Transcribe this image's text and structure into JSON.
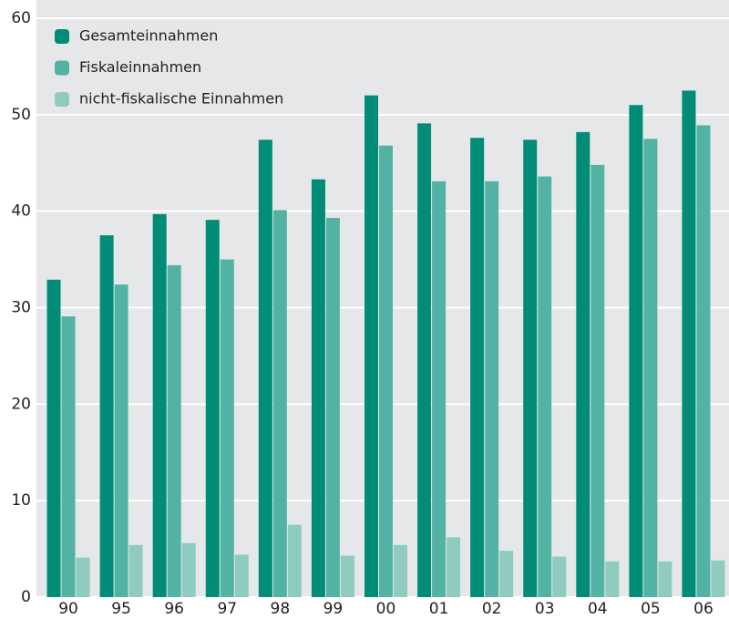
{
  "chart_data": {
    "type": "bar",
    "categories": [
      "90",
      "95",
      "96",
      "97",
      "98",
      "99",
      "00",
      "01",
      "02",
      "03",
      "04",
      "05",
      "06"
    ],
    "series": [
      {
        "name": "Gesamteinnahmen",
        "color": "#008c76",
        "values": [
          32.9,
          37.5,
          39.7,
          39.1,
          47.4,
          43.3,
          52.0,
          49.1,
          47.6,
          47.4,
          48.2,
          51.0,
          52.5
        ]
      },
      {
        "name": "Fiskaleinnahmen",
        "color": "#52b3a5",
        "values": [
          29.1,
          32.4,
          34.4,
          35.0,
          40.1,
          39.3,
          46.8,
          43.1,
          43.1,
          43.6,
          44.8,
          47.5,
          48.9
        ]
      },
      {
        "name": "nicht-fiskalische Einnahmen",
        "color": "#90cbbf",
        "values": [
          4.1,
          5.4,
          5.6,
          4.4,
          7.5,
          4.3,
          5.4,
          6.2,
          4.8,
          4.2,
          3.7,
          3.7,
          3.8
        ]
      }
    ],
    "ylim": [
      0,
      60
    ],
    "yticks": [
      0,
      10,
      20,
      30,
      40,
      50,
      60
    ],
    "grid": true,
    "legend": "top-left"
  }
}
